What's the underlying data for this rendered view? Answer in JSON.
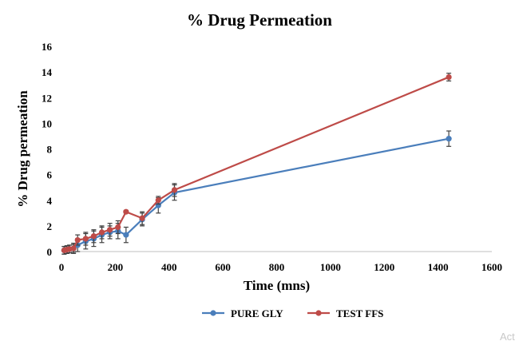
{
  "watermark_text": "Act",
  "chart_data": {
    "type": "line",
    "title": "% Drug Permeation",
    "xlabel": "Time (mns)",
    "ylabel": "% Drug permeation",
    "xlim": [
      0,
      1600
    ],
    "ylim": [
      0,
      16
    ],
    "xticks": [
      0,
      200,
      400,
      600,
      800,
      1000,
      1200,
      1400,
      1600
    ],
    "yticks": [
      0,
      2,
      4,
      6,
      8,
      10,
      12,
      14,
      16
    ],
    "grid": false,
    "legend_position": "bottom",
    "series": [
      {
        "name": "PURE GLY",
        "color": "#4a7ebb",
        "points": [
          {
            "x": 10,
            "y": 0.1,
            "err": 0.3
          },
          {
            "x": 20,
            "y": 0.15,
            "err": 0.3
          },
          {
            "x": 30,
            "y": 0.2,
            "err": 0.3
          },
          {
            "x": 45,
            "y": 0.25,
            "err": 0.4
          },
          {
            "x": 60,
            "y": 0.5,
            "err": 0.5
          },
          {
            "x": 90,
            "y": 0.8,
            "err": 0.6
          },
          {
            "x": 120,
            "y": 1.0,
            "err": 0.6
          },
          {
            "x": 150,
            "y": 1.3,
            "err": 0.6
          },
          {
            "x": 180,
            "y": 1.5,
            "err": 0.5
          },
          {
            "x": 210,
            "y": 1.6,
            "err": 0.6
          },
          {
            "x": 240,
            "y": 1.3,
            "err": 0.6
          },
          {
            "x": 300,
            "y": 2.5,
            "err": 0.5
          },
          {
            "x": 360,
            "y": 3.6,
            "err": 0.6
          },
          {
            "x": 420,
            "y": 4.6,
            "err": 0.6
          },
          {
            "x": 1440,
            "y": 8.8,
            "err": 0.6
          }
        ]
      },
      {
        "name": "TEST FFS",
        "color": "#be4b48",
        "points": [
          {
            "x": 10,
            "y": 0.1,
            "err": 0.3
          },
          {
            "x": 20,
            "y": 0.15,
            "err": 0.3
          },
          {
            "x": 30,
            "y": 0.2,
            "err": 0.3
          },
          {
            "x": 45,
            "y": 0.25,
            "err": 0.3
          },
          {
            "x": 60,
            "y": 0.9,
            "err": 0.4
          },
          {
            "x": 90,
            "y": 1.0,
            "err": 0.5
          },
          {
            "x": 120,
            "y": 1.2,
            "err": 0.5
          },
          {
            "x": 150,
            "y": 1.5,
            "err": 0.5
          },
          {
            "x": 180,
            "y": 1.7,
            "err": 0.5
          },
          {
            "x": 210,
            "y": 1.9,
            "err": 0.5
          },
          {
            "x": 240,
            "y": 3.1,
            "err": 0.1
          },
          {
            "x": 300,
            "y": 2.6,
            "err": 0.5
          },
          {
            "x": 360,
            "y": 4.0,
            "err": 0.3
          },
          {
            "x": 420,
            "y": 4.8,
            "err": 0.5
          },
          {
            "x": 1440,
            "y": 13.6,
            "err": 0.3
          }
        ]
      }
    ]
  }
}
